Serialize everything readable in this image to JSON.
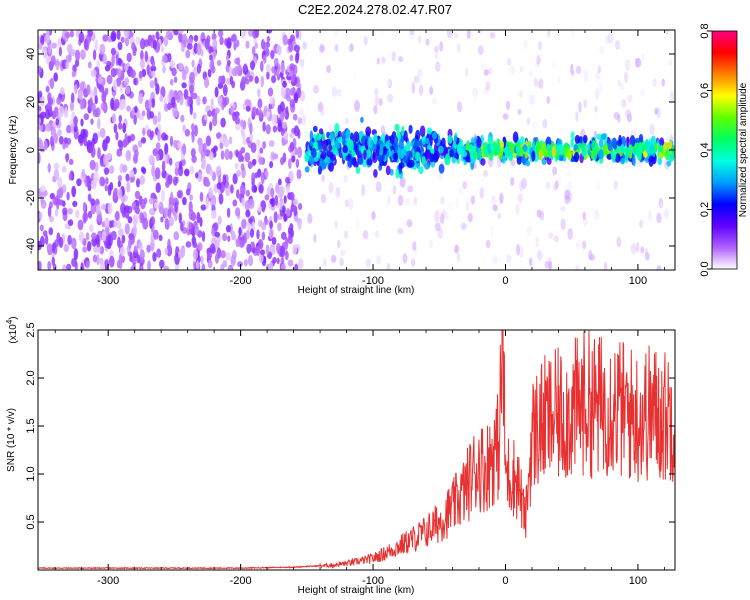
{
  "title": "C2E2.2024.278.02.47.R07",
  "chart_data": [
    {
      "type": "heatmap",
      "xlabel": "Height of straight line (km)",
      "ylabel": "Frequency (Hz)",
      "xlim": [
        -353,
        128
      ],
      "ylim": [
        -50,
        50
      ],
      "xticks": [
        -300,
        -200,
        -100,
        0,
        100
      ],
      "xtick_labels": [
        "-300",
        "-200",
        "-100",
        "0",
        "100"
      ],
      "yticks": [
        -40,
        -20,
        0,
        20,
        40
      ],
      "ytick_labels": [
        "-40",
        "-20",
        "0",
        "20",
        "40"
      ],
      "colorbar": {
        "label": "Normalized spectral amplitude",
        "range": [
          0.0,
          0.8
        ],
        "ticks": [
          0.0,
          0.2,
          0.4,
          0.6,
          0.8
        ],
        "tick_labels": [
          "0.0",
          "0.2",
          "0.4",
          "0.6",
          "0.8"
        ],
        "colors": [
          "#ffffff",
          "#b060ff",
          "#6000ff",
          "#0000ff",
          "#00a0ff",
          "#00ffe0",
          "#00ff60",
          "#60ff00",
          "#ffff00",
          "#ff8000",
          "#ff0000",
          "#ff0080"
        ]
      },
      "regions": [
        {
          "x": [
            -353,
            -155
          ],
          "freq_spread": [
            -50,
            50
          ],
          "amplitude": [
            0.02,
            0.12
          ]
        },
        {
          "x": [
            -155,
            128
          ],
          "freq_spread": [
            -50,
            50
          ],
          "amplitude": [
            0.0,
            0.06
          ]
        },
        {
          "x": [
            -150,
            128
          ],
          "freq_center": 0,
          "freq_halfwidth": 13,
          "amplitude": [
            0.15,
            0.4
          ]
        }
      ]
    },
    {
      "type": "line",
      "xlabel": "Height of straight line (km)",
      "ylabel": "SNR (10 * v/v)",
      "y_multiplier_label": "(x10",
      "y_multiplier_exp": "4",
      "y_multiplier_close": ")",
      "xlim": [
        -353,
        128
      ],
      "ylim": [
        0,
        2.5
      ],
      "xticks": [
        -300,
        -200,
        -100,
        0,
        100
      ],
      "xtick_labels": [
        "-300",
        "-200",
        "-100",
        "0",
        "100"
      ],
      "yticks": [
        0.5,
        1.0,
        1.5,
        2.0,
        2.5
      ],
      "ytick_labels": [
        "0.5",
        "1.0",
        "1.5",
        "2.0",
        "2.5"
      ],
      "color": "#e83030",
      "series": [
        {
          "x": [
            -353,
            -300,
            -250,
            -200,
            -160,
            -130,
            -115,
            -100,
            -90,
            -80,
            -70,
            -60,
            -50,
            -40,
            -30,
            -25,
            -20,
            -15,
            -10,
            -5,
            -2,
            0,
            5,
            10,
            15,
            20,
            25,
            30,
            40,
            50,
            60,
            70,
            80,
            90,
            100,
            110,
            120,
            128
          ],
          "y": [
            0.02,
            0.02,
            0.02,
            0.02,
            0.03,
            0.05,
            0.08,
            0.12,
            0.18,
            0.25,
            0.32,
            0.4,
            0.5,
            0.65,
            0.85,
            1.0,
            1.1,
            1.05,
            1.2,
            1.3,
            2.4,
            1.0,
            1.0,
            0.9,
            0.5,
            1.4,
            1.5,
            1.55,
            1.6,
            1.65,
            1.75,
            1.7,
            1.75,
            1.65,
            1.6,
            1.65,
            1.6,
            1.65
          ]
        }
      ]
    }
  ]
}
